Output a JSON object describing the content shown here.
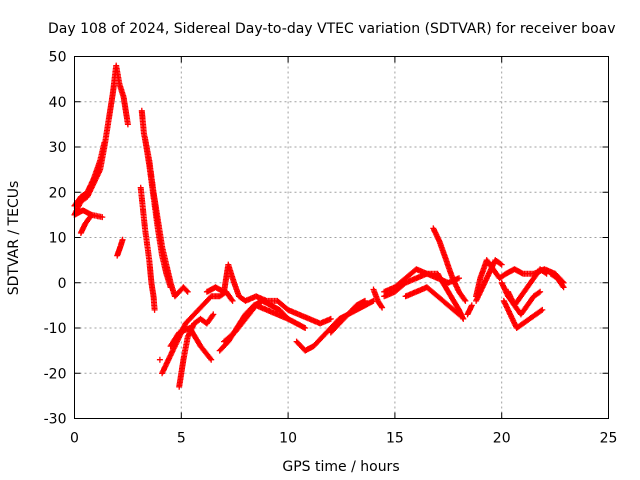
{
  "chart_data": {
    "type": "scatter",
    "title": "Day 108 of 2024, Sidereal Day-to-day VTEC variation (SDTVAR) for receiver boav",
    "xlabel": "GPS time / hours",
    "ylabel": "SDTVAR / TECUs",
    "xlim": [
      0,
      25
    ],
    "ylim": [
      -30,
      50
    ],
    "xticks": [
      "0",
      "5",
      "10",
      "15",
      "20",
      "25"
    ],
    "yticks": [
      "-30",
      "-20",
      "-10",
      "0",
      "10",
      "20",
      "30",
      "40",
      "50"
    ],
    "grid": true,
    "marker": "plus",
    "color": "#ff0000",
    "series": [
      {
        "name": "s1",
        "points": [
          [
            0.0,
            15
          ],
          [
            0.3,
            18
          ],
          [
            0.6,
            19
          ],
          [
            0.9,
            22
          ],
          [
            1.2,
            25
          ],
          [
            1.4,
            30
          ],
          [
            1.6,
            36
          ],
          [
            1.8,
            42
          ],
          [
            1.95,
            48
          ],
          [
            2.1,
            44
          ],
          [
            2.3,
            41
          ],
          [
            2.5,
            35
          ]
        ]
      },
      {
        "name": "s2",
        "points": [
          [
            0.0,
            17
          ],
          [
            0.3,
            19
          ],
          [
            0.6,
            20
          ],
          [
            0.9,
            23
          ],
          [
            1.2,
            27
          ],
          [
            1.4,
            31
          ]
        ]
      },
      {
        "name": "s3",
        "points": [
          [
            0.0,
            15
          ],
          [
            0.4,
            16
          ],
          [
            0.8,
            15
          ],
          [
            1.3,
            14.5
          ]
        ]
      },
      {
        "name": "s4",
        "points": [
          [
            0.3,
            11
          ],
          [
            0.5,
            13
          ],
          [
            0.8,
            15
          ]
        ]
      },
      {
        "name": "s5",
        "points": [
          [
            2.0,
            6
          ],
          [
            2.15,
            8
          ],
          [
            2.25,
            9.5
          ]
        ]
      },
      {
        "name": "s6",
        "points": [
          [
            3.1,
            21
          ],
          [
            3.3,
            12
          ],
          [
            3.5,
            5
          ],
          [
            3.6,
            0
          ],
          [
            3.7,
            -3
          ],
          [
            3.75,
            -6
          ]
        ]
      },
      {
        "name": "s7",
        "points": [
          [
            3.15,
            38
          ],
          [
            3.25,
            33
          ],
          [
            3.5,
            27
          ],
          [
            3.7,
            20
          ],
          [
            3.9,
            14
          ],
          [
            4.1,
            8
          ],
          [
            4.3,
            4
          ],
          [
            4.5,
            0
          ],
          [
            4.7,
            -3
          ],
          [
            4.9,
            -2
          ],
          [
            5.1,
            -1
          ],
          [
            5.3,
            -2
          ]
        ]
      },
      {
        "name": "s8",
        "points": [
          [
            3.3,
            32
          ],
          [
            3.5,
            26
          ],
          [
            3.7,
            19
          ],
          [
            3.9,
            12
          ],
          [
            4.1,
            6
          ],
          [
            4.3,
            2
          ],
          [
            4.5,
            -1
          ]
        ]
      },
      {
        "name": "s9",
        "points": [
          [
            4.0,
            -17
          ]
        ]
      },
      {
        "name": "s10",
        "points": [
          [
            4.1,
            -20
          ],
          [
            4.4,
            -17
          ],
          [
            4.8,
            -13
          ],
          [
            5.2,
            -9
          ],
          [
            5.6,
            -7
          ],
          [
            6.0,
            -5
          ],
          [
            6.4,
            -3
          ],
          [
            6.8,
            -3
          ],
          [
            7.1,
            -2
          ],
          [
            7.4,
            -4
          ]
        ]
      },
      {
        "name": "s11",
        "points": [
          [
            4.9,
            -23
          ],
          [
            5.1,
            -17
          ],
          [
            5.3,
            -12
          ],
          [
            5.6,
            -9
          ],
          [
            5.9,
            -8
          ],
          [
            6.2,
            -9
          ],
          [
            6.5,
            -7
          ]
        ]
      },
      {
        "name": "s12",
        "points": [
          [
            4.5,
            -14
          ],
          [
            4.9,
            -11
          ],
          [
            5.4,
            -10
          ],
          [
            5.9,
            -14
          ],
          [
            6.4,
            -17
          ]
        ]
      },
      {
        "name": "s13",
        "points": [
          [
            6.2,
            -2
          ],
          [
            6.6,
            -1
          ],
          [
            7.0,
            -2
          ],
          [
            7.2,
            4
          ],
          [
            7.4,
            1
          ],
          [
            7.7,
            -3
          ],
          [
            8.0,
            -4
          ],
          [
            8.5,
            -3
          ],
          [
            9.0,
            -4
          ],
          [
            9.5,
            -4
          ],
          [
            10.0,
            -6
          ],
          [
            10.5,
            -7
          ],
          [
            11.0,
            -8
          ],
          [
            11.5,
            -9
          ],
          [
            12.0,
            -8
          ]
        ]
      },
      {
        "name": "s14",
        "points": [
          [
            6.8,
            -15
          ],
          [
            7.2,
            -13
          ],
          [
            7.6,
            -10
          ],
          [
            8.0,
            -7
          ],
          [
            8.4,
            -5
          ],
          [
            8.8,
            -4
          ],
          [
            9.2,
            -5
          ],
          [
            9.6,
            -6
          ],
          [
            10.0,
            -8
          ],
          [
            10.4,
            -9
          ],
          [
            10.8,
            -10
          ]
        ]
      },
      {
        "name": "s15",
        "points": [
          [
            7.0,
            -13
          ],
          [
            7.5,
            -11
          ],
          [
            8.0,
            -8
          ],
          [
            8.5,
            -5
          ],
          [
            9.0,
            -6
          ],
          [
            9.5,
            -7
          ],
          [
            10.0,
            -8
          ]
        ]
      },
      {
        "name": "s16",
        "points": [
          [
            10.4,
            -13
          ],
          [
            10.8,
            -15
          ],
          [
            11.2,
            -14
          ],
          [
            11.6,
            -12
          ],
          [
            12.0,
            -10
          ],
          [
            12.4,
            -8
          ],
          [
            12.8,
            -7
          ],
          [
            13.2,
            -6
          ],
          [
            13.6,
            -5
          ],
          [
            14.0,
            -4
          ]
        ]
      },
      {
        "name": "s17",
        "points": [
          [
            12.0,
            -11
          ],
          [
            12.4,
            -9
          ],
          [
            12.8,
            -7
          ],
          [
            13.2,
            -5
          ],
          [
            13.6,
            -4
          ]
        ]
      },
      {
        "name": "s18",
        "points": [
          [
            14.0,
            -1.5
          ],
          [
            14.2,
            -4
          ],
          [
            14.4,
            -5.5
          ]
        ]
      },
      {
        "name": "s19",
        "points": [
          [
            14.5,
            -3
          ],
          [
            15.0,
            -2
          ],
          [
            15.5,
            0
          ],
          [
            16.0,
            1
          ],
          [
            16.5,
            2
          ],
          [
            17.0,
            2
          ],
          [
            17.5,
            -2
          ],
          [
            18.0,
            -6
          ],
          [
            18.2,
            -8
          ]
        ]
      },
      {
        "name": "s20",
        "points": [
          [
            14.5,
            -2
          ],
          [
            15.0,
            -1
          ],
          [
            15.5,
            1
          ],
          [
            16.0,
            3
          ],
          [
            16.5,
            2
          ],
          [
            17.0,
            1
          ],
          [
            17.5,
            0
          ],
          [
            18.0,
            1
          ]
        ]
      },
      {
        "name": "s21",
        "points": [
          [
            15.5,
            -3
          ],
          [
            16.0,
            -2
          ],
          [
            16.5,
            -1
          ],
          [
            17.0,
            -3
          ],
          [
            17.5,
            -5
          ],
          [
            18.0,
            -7
          ]
        ]
      },
      {
        "name": "s22",
        "points": [
          [
            16.8,
            12
          ],
          [
            17.1,
            9
          ],
          [
            17.4,
            5
          ],
          [
            17.7,
            1
          ],
          [
            18.0,
            -2
          ],
          [
            18.3,
            -4
          ]
        ]
      },
      {
        "name": "s23",
        "points": [
          [
            18.4,
            -7
          ],
          [
            18.6,
            -5
          ]
        ]
      },
      {
        "name": "s24",
        "points": [
          [
            18.8,
            -3
          ],
          [
            19.0,
            1
          ],
          [
            19.3,
            5
          ],
          [
            19.6,
            3
          ],
          [
            19.9,
            1
          ],
          [
            20.2,
            2
          ],
          [
            20.6,
            3
          ],
          [
            21.0,
            2
          ],
          [
            21.5,
            2
          ],
          [
            22.0,
            3
          ],
          [
            22.5,
            2
          ],
          [
            22.9,
            0
          ]
        ]
      },
      {
        "name": "s25",
        "points": [
          [
            18.8,
            -4
          ],
          [
            19.1,
            -1
          ],
          [
            19.4,
            2
          ],
          [
            19.7,
            5
          ],
          [
            20.0,
            4
          ]
        ]
      },
      {
        "name": "s26",
        "points": [
          [
            20.0,
            0
          ],
          [
            20.3,
            -3
          ],
          [
            20.6,
            -5
          ],
          [
            20.9,
            -3
          ],
          [
            21.2,
            -1
          ],
          [
            21.5,
            1
          ],
          [
            21.8,
            3
          ],
          [
            22.1,
            2
          ]
        ]
      },
      {
        "name": "s27",
        "points": [
          [
            20.1,
            -4
          ],
          [
            20.4,
            -7
          ],
          [
            20.7,
            -10
          ],
          [
            21.0,
            -9
          ],
          [
            21.3,
            -8
          ],
          [
            21.6,
            -7
          ],
          [
            21.9,
            -6
          ]
        ]
      },
      {
        "name": "s28",
        "points": [
          [
            20.3,
            -2
          ],
          [
            20.6,
            -5
          ],
          [
            20.9,
            -7
          ],
          [
            21.2,
            -5
          ],
          [
            21.5,
            -3
          ],
          [
            21.8,
            -2
          ]
        ]
      },
      {
        "name": "s29",
        "points": [
          [
            22.3,
            2
          ],
          [
            22.6,
            1
          ],
          [
            22.9,
            -1
          ]
        ]
      }
    ]
  }
}
